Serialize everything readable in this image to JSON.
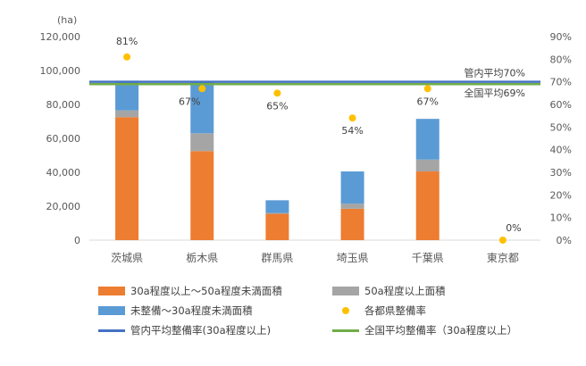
{
  "colors": {
    "orange": "#ED7D31",
    "gray": "#A5A5A5",
    "blue": "#5B9BD5",
    "yellow": "#FFC000",
    "navy": "#4472C4",
    "green": "#70AD47"
  },
  "chart_data": {
    "type": "bar",
    "stacked": true,
    "y_unit": "(ha)",
    "categories": [
      "茨城県",
      "栃木県",
      "群馬県",
      "埼玉県",
      "千葉県",
      "東京都"
    ],
    "ylim": [
      0,
      120000
    ],
    "y_ticks": [
      "0",
      "20,000",
      "40,000",
      "60,000",
      "80,000",
      "100,000",
      "120,000"
    ],
    "y2lim": [
      0,
      90
    ],
    "y2_ticks": [
      "0%",
      "10%",
      "20%",
      "30%",
      "40%",
      "50%",
      "60%",
      "70%",
      "80%",
      "90%"
    ],
    "grid": false,
    "series": [
      {
        "name": "30a程度以上～50a程度未満面積",
        "color_key": "orange",
        "values": [
          72500,
          52500,
          15500,
          18500,
          40500,
          0
        ]
      },
      {
        "name": "50a程度以上面積",
        "color_key": "gray",
        "values": [
          4000,
          10500,
          500,
          3000,
          7000,
          0
        ]
      },
      {
        "name": "未整備～30a程度未満面積",
        "color_key": "blue",
        "values": [
          17500,
          30000,
          7500,
          19000,
          24000,
          0
        ]
      }
    ],
    "rate_series": {
      "name": "各都県整備率",
      "values": [
        81,
        67,
        65,
        54,
        67,
        0
      ],
      "labels": [
        "81%",
        "67%",
        "65%",
        "54%",
        "67%",
        "0%"
      ]
    },
    "reference_lines": [
      {
        "name": "管内平均整備率(30a程度以上)",
        "value": 70,
        "annotation": "管内平均70%",
        "color_key": "navy"
      },
      {
        "name": "全国平均整備率（30a程度以上）",
        "value": 69,
        "annotation": "全国平均69%",
        "color_key": "green"
      }
    ],
    "legend_position": "bottom"
  }
}
